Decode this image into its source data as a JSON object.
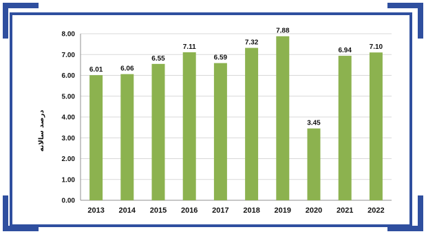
{
  "colors": {
    "frame": "#2f4f9f",
    "bar": "#8cb24f",
    "grid": "#d8d8d8",
    "axis": "#8f8f8f",
    "text": "#111111"
  },
  "chart_data": {
    "type": "bar",
    "title": "",
    "xlabel": "",
    "ylabel": "درصد سالانه",
    "categories": [
      "2013",
      "2014",
      "2015",
      "2016",
      "2017",
      "2018",
      "2019",
      "2020",
      "2021",
      "2022"
    ],
    "values": [
      6.01,
      6.06,
      6.55,
      7.11,
      6.59,
      7.32,
      7.88,
      3.45,
      6.94,
      7.1
    ],
    "data_labels": [
      "6.01",
      "6.06",
      "6.55",
      "7.11",
      "6.59",
      "7.32",
      "7.88",
      "3.45",
      "6.94",
      "7.10"
    ],
    "ylim": [
      0,
      8
    ],
    "yticks": [
      "0.00",
      "1.00",
      "2.00",
      "3.00",
      "4.00",
      "5.00",
      "6.00",
      "7.00",
      "8.00"
    ],
    "grid": true,
    "legend": "none"
  }
}
